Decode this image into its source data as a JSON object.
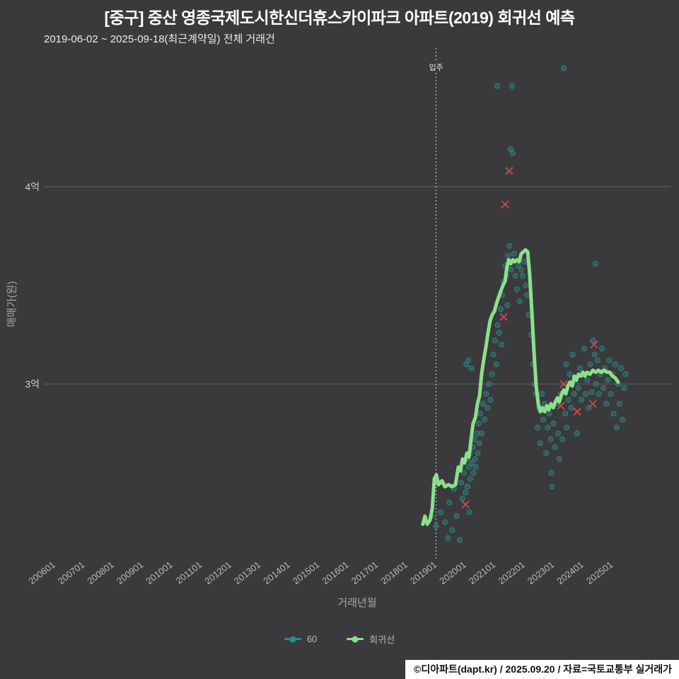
{
  "colors": {
    "background": "#3a3a3c",
    "grid": "#626264",
    "title": "#ffffff",
    "tick": "#b9b9ba",
    "axis_label": "#a6a6a8",
    "scatter": "#2d8c8c",
    "regression": "#8ce08a",
    "outlier": "#c64a52",
    "move_in_line": "#d8d8d8",
    "footer_bg": "#ffffff",
    "footer_text": "#111111"
  },
  "legend": {
    "items": [
      {
        "label": "60"
      },
      {
        "label": "회귀선"
      }
    ]
  },
  "footer": {
    "text": "©디아파트(dapt.kr) / 2025.09.20 / 자료=국토교통부 실거래가"
  },
  "chart_data": {
    "type": "scatter",
    "title": "[중구] 중산 영종국제도시한신더휴스카이파크 아파트(2019) 회귀선 예측",
    "subtitle": "2019-06-02 ~ 2025-09-18(최근계약일) 전체 거래건",
    "xlabel": "거래년월",
    "ylabel": "매매가(원)",
    "x_ticks": [
      "200601",
      "200701",
      "200801",
      "200901",
      "201001",
      "201101",
      "201201",
      "201301",
      "201401",
      "201501",
      "201601",
      "201701",
      "201801",
      "201901",
      "202001",
      "202101",
      "202201",
      "202301",
      "202401",
      "202501"
    ],
    "y_ticks": [
      {
        "label": "4억",
        "value": 4.0
      },
      {
        "label": "3억",
        "value": 3.0
      }
    ],
    "x_range_years": [
      2005.7,
      2027.0
    ],
    "y_range_eok": [
      2.1,
      4.72
    ],
    "grid": "horizontal-only",
    "legend_position": "bottom-center",
    "move_in_line": {
      "x": 2019.05,
      "label": "입주"
    },
    "series": [
      {
        "name": "60",
        "type": "scatter",
        "color": "#2d8c8c",
        "points": [
          [
            2018.9,
            2.33
          ],
          [
            2019.05,
            2.28
          ],
          [
            2019.2,
            2.35
          ],
          [
            2019.35,
            2.3
          ],
          [
            2019.45,
            2.22
          ],
          [
            2019.5,
            2.4
          ],
          [
            2019.6,
            2.26
          ],
          [
            2019.65,
            2.47
          ],
          [
            2019.75,
            2.33
          ],
          [
            2019.85,
            2.21
          ],
          [
            2019.9,
            2.5
          ],
          [
            2019.95,
            2.42
          ],
          [
            2020.0,
            2.55
          ],
          [
            2020.05,
            2.45
          ],
          [
            2020.08,
            3.1
          ],
          [
            2020.1,
            2.62
          ],
          [
            2020.12,
            2.48
          ],
          [
            2020.15,
            3.12
          ],
          [
            2020.16,
            2.58
          ],
          [
            2020.18,
            2.35
          ],
          [
            2020.2,
            2.65
          ],
          [
            2020.22,
            2.52
          ],
          [
            2020.25,
            3.08
          ],
          [
            2020.26,
            2.6
          ],
          [
            2020.3,
            2.68
          ],
          [
            2020.32,
            2.55
          ],
          [
            2020.35,
            2.72
          ],
          [
            2020.38,
            2.62
          ],
          [
            2020.4,
            2.58
          ],
          [
            2020.45,
            2.75
          ],
          [
            2020.47,
            2.65
          ],
          [
            2020.5,
            2.8
          ],
          [
            2020.52,
            2.7
          ],
          [
            2020.55,
            2.85
          ],
          [
            2020.6,
            2.75
          ],
          [
            2020.65,
            2.9
          ],
          [
            2020.7,
            2.82
          ],
          [
            2020.75,
            2.95
          ],
          [
            2020.8,
            2.88
          ],
          [
            2020.85,
            3.0
          ],
          [
            2020.9,
            2.92
          ],
          [
            2020.95,
            3.05
          ],
          [
            2021.0,
            3.15
          ],
          [
            2021.05,
            3.22
          ],
          [
            2021.1,
            3.1
          ],
          [
            2021.13,
            4.51
          ],
          [
            2021.15,
            3.3
          ],
          [
            2021.2,
            3.26
          ],
          [
            2021.25,
            3.38
          ],
          [
            2021.28,
            3.2
          ],
          [
            2021.3,
            3.45
          ],
          [
            2021.35,
            3.52
          ],
          [
            2021.4,
            3.6
          ],
          [
            2021.45,
            3.55
          ],
          [
            2021.48,
            3.4
          ],
          [
            2021.5,
            3.65
          ],
          [
            2021.55,
            3.7
          ],
          [
            2021.59,
            4.19
          ],
          [
            2021.6,
            3.58
          ],
          [
            2021.64,
            4.51
          ],
          [
            2021.65,
            3.62
          ],
          [
            2021.66,
            4.17
          ],
          [
            2021.7,
            3.66
          ],
          [
            2021.75,
            3.55
          ],
          [
            2021.8,
            3.48
          ],
          [
            2021.85,
            3.6
          ],
          [
            2021.9,
            3.42
          ],
          [
            2021.95,
            3.58
          ],
          [
            2022.0,
            3.55
          ],
          [
            2022.05,
            3.62
          ],
          [
            2022.1,
            3.5
          ],
          [
            2022.15,
            3.45
          ],
          [
            2022.2,
            3.35
          ],
          [
            2022.3,
            3.25
          ],
          [
            2022.35,
            3.1
          ],
          [
            2022.4,
            3.0
          ],
          [
            2022.45,
            2.95
          ],
          [
            2022.5,
            2.78
          ],
          [
            2022.55,
            2.88
          ],
          [
            2022.6,
            2.7
          ],
          [
            2022.65,
            2.95
          ],
          [
            2022.7,
            2.82
          ],
          [
            2022.75,
            2.9
          ],
          [
            2022.8,
            2.65
          ],
          [
            2022.85,
            2.78
          ],
          [
            2022.9,
            2.85
          ],
          [
            2022.95,
            2.72
          ],
          [
            2022.98,
            2.55
          ],
          [
            2023.0,
            2.48
          ],
          [
            2023.05,
            2.8
          ],
          [
            2023.1,
            2.68
          ],
          [
            2023.15,
            2.9
          ],
          [
            2023.2,
            2.75
          ],
          [
            2023.25,
            2.62
          ],
          [
            2023.3,
            2.95
          ],
          [
            2023.35,
            2.72
          ],
          [
            2023.4,
            4.6
          ],
          [
            2023.45,
            2.85
          ],
          [
            2023.48,
            3.1
          ],
          [
            2023.5,
            2.78
          ],
          [
            2023.55,
            2.92
          ],
          [
            2023.6,
            3.05
          ],
          [
            2023.65,
            2.88
          ],
          [
            2023.7,
            3.15
          ],
          [
            2023.75,
            2.95
          ],
          [
            2023.8,
            3.02
          ],
          [
            2023.85,
            2.75
          ],
          [
            2023.9,
            2.98
          ],
          [
            2023.95,
            3.08
          ],
          [
            2024.0,
            2.92
          ],
          [
            2024.05,
            3.05
          ],
          [
            2024.1,
            3.18
          ],
          [
            2024.15,
            2.95
          ],
          [
            2024.2,
            3.02
          ],
          [
            2024.25,
            2.88
          ],
          [
            2024.3,
            3.1
          ],
          [
            2024.35,
            2.96
          ],
          [
            2024.4,
            3.22
          ],
          [
            2024.45,
            3.15
          ],
          [
            2024.48,
            3.61
          ],
          [
            2024.5,
            3.0
          ],
          [
            2024.55,
            3.12
          ],
          [
            2024.6,
            2.95
          ],
          [
            2024.65,
            3.05
          ],
          [
            2024.7,
            3.18
          ],
          [
            2024.75,
            2.98
          ],
          [
            2024.8,
            3.08
          ],
          [
            2024.85,
            2.9
          ],
          [
            2024.9,
            3.02
          ],
          [
            2024.95,
            3.12
          ],
          [
            2025.0,
            2.95
          ],
          [
            2025.05,
            3.05
          ],
          [
            2025.1,
            2.85
          ],
          [
            2025.15,
            3.1
          ],
          [
            2025.2,
            2.78
          ],
          [
            2025.25,
            3.0
          ],
          [
            2025.3,
            2.9
          ],
          [
            2025.35,
            3.08
          ],
          [
            2025.4,
            2.82
          ],
          [
            2025.45,
            2.98
          ],
          [
            2025.5,
            3.05
          ]
        ]
      },
      {
        "name": "outlier-x",
        "type": "outlier_x",
        "color": "#c64a52",
        "points": [
          [
            2020.05,
            2.39
          ],
          [
            2021.35,
            3.34
          ],
          [
            2021.4,
            3.91
          ],
          [
            2021.54,
            4.08
          ],
          [
            2023.3,
            2.89
          ],
          [
            2023.4,
            3.0
          ],
          [
            2023.86,
            2.86
          ],
          [
            2024.39,
            2.9
          ],
          [
            2024.43,
            3.2
          ]
        ]
      },
      {
        "name": "회귀선",
        "type": "line",
        "color": "#8ce08a",
        "points": [
          [
            2018.6,
            2.29
          ],
          [
            2018.67,
            2.33
          ],
          [
            2018.75,
            2.29
          ],
          [
            2018.84,
            2.31
          ],
          [
            2018.92,
            2.37
          ],
          [
            2018.99,
            2.52
          ],
          [
            2019.06,
            2.54
          ],
          [
            2019.13,
            2.49
          ],
          [
            2019.25,
            2.51
          ],
          [
            2019.35,
            2.48
          ],
          [
            2019.47,
            2.49
          ],
          [
            2019.59,
            2.48
          ],
          [
            2019.71,
            2.49
          ],
          [
            2019.81,
            2.58
          ],
          [
            2019.88,
            2.56
          ],
          [
            2019.95,
            2.62
          ],
          [
            2020.02,
            2.6
          ],
          [
            2020.1,
            2.65
          ],
          [
            2020.17,
            2.63
          ],
          [
            2020.24,
            2.72
          ],
          [
            2020.31,
            2.8
          ],
          [
            2020.39,
            2.83
          ],
          [
            2020.46,
            2.9
          ],
          [
            2020.53,
            2.94
          ],
          [
            2020.6,
            3.05
          ],
          [
            2020.67,
            3.12
          ],
          [
            2020.75,
            3.19
          ],
          [
            2020.82,
            3.26
          ],
          [
            2020.89,
            3.32
          ],
          [
            2020.96,
            3.35
          ],
          [
            2021.04,
            3.37
          ],
          [
            2021.11,
            3.41
          ],
          [
            2021.18,
            3.44
          ],
          [
            2021.25,
            3.47
          ],
          [
            2021.33,
            3.5
          ],
          [
            2021.4,
            3.52
          ],
          [
            2021.45,
            3.58
          ],
          [
            2021.52,
            3.63
          ],
          [
            2021.59,
            3.61
          ],
          [
            2021.66,
            3.63
          ],
          [
            2021.73,
            3.62
          ],
          [
            2021.81,
            3.63
          ],
          [
            2021.88,
            3.62
          ],
          [
            2021.95,
            3.66
          ],
          [
            2022.02,
            3.67
          ],
          [
            2022.1,
            3.68
          ],
          [
            2022.17,
            3.67
          ],
          [
            2022.24,
            3.55
          ],
          [
            2022.31,
            3.37
          ],
          [
            2022.39,
            3.15
          ],
          [
            2022.46,
            2.99
          ],
          [
            2022.53,
            2.9
          ],
          [
            2022.6,
            2.86
          ],
          [
            2022.67,
            2.88
          ],
          [
            2022.75,
            2.86
          ],
          [
            2022.82,
            2.89
          ],
          [
            2022.89,
            2.87
          ],
          [
            2022.96,
            2.9
          ],
          [
            2023.04,
            2.88
          ],
          [
            2023.11,
            2.91
          ],
          [
            2023.18,
            2.93
          ],
          [
            2023.25,
            2.91
          ],
          [
            2023.33,
            2.95
          ],
          [
            2023.4,
            2.97
          ],
          [
            2023.47,
            2.95
          ],
          [
            2023.54,
            2.99
          ],
          [
            2023.61,
            3.01
          ],
          [
            2023.69,
            2.99
          ],
          [
            2023.76,
            3.04
          ],
          [
            2023.83,
            3.02
          ],
          [
            2023.9,
            3.05
          ],
          [
            2023.98,
            3.04
          ],
          [
            2024.05,
            3.06
          ],
          [
            2024.12,
            3.04
          ],
          [
            2024.19,
            3.06
          ],
          [
            2024.29,
            3.05
          ],
          [
            2024.39,
            3.07
          ],
          [
            2024.48,
            3.06
          ],
          [
            2024.58,
            3.07
          ],
          [
            2024.67,
            3.06
          ],
          [
            2024.77,
            3.07
          ],
          [
            2024.87,
            3.06
          ],
          [
            2024.96,
            3.06
          ],
          [
            2025.06,
            3.04
          ],
          [
            2025.16,
            3.03
          ],
          [
            2025.25,
            3.01
          ]
        ]
      }
    ]
  }
}
